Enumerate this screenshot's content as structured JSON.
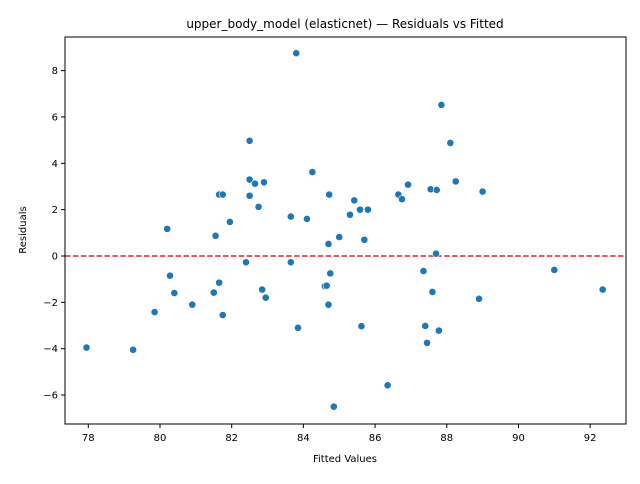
{
  "chart_data": {
    "type": "scatter",
    "title": "upper_body_model (elasticnet) — Residuals vs Fitted",
    "xlabel": "Fitted Values",
    "ylabel": "Residuals",
    "xlim": [
      77.35,
      93.0
    ],
    "ylim": [
      -7.25,
      9.45
    ],
    "xticks": [
      78,
      80,
      82,
      84,
      86,
      88,
      90,
      92
    ],
    "yticks": [
      -6,
      -4,
      -2,
      0,
      2,
      4,
      6,
      8
    ],
    "reference_line": {
      "y": 0,
      "style": "dashed",
      "color": "#d62728"
    },
    "point_color": "#1f77b4",
    "grid": false,
    "legend": "none",
    "series": [
      {
        "points": [
          [
            77.95,
            -3.95
          ],
          [
            79.25,
            -4.05
          ],
          [
            79.85,
            -2.42
          ],
          [
            80.2,
            1.17
          ],
          [
            80.28,
            -0.85
          ],
          [
            80.4,
            -1.6
          ],
          [
            80.9,
            -2.1
          ],
          [
            81.5,
            -1.58
          ],
          [
            81.55,
            0.87
          ],
          [
            81.65,
            -1.15
          ],
          [
            81.65,
            2.65
          ],
          [
            81.75,
            2.65
          ],
          [
            81.75,
            -2.55
          ],
          [
            81.95,
            1.47
          ],
          [
            82.4,
            -0.27
          ],
          [
            82.5,
            4.97
          ],
          [
            82.5,
            3.3
          ],
          [
            82.5,
            2.6
          ],
          [
            82.65,
            3.12
          ],
          [
            82.75,
            2.12
          ],
          [
            82.85,
            -1.45
          ],
          [
            82.9,
            3.18
          ],
          [
            82.95,
            -1.8
          ],
          [
            83.65,
            1.7
          ],
          [
            83.65,
            -0.27
          ],
          [
            83.8,
            8.75
          ],
          [
            83.85,
            -3.1
          ],
          [
            84.1,
            1.6
          ],
          [
            84.25,
            3.62
          ],
          [
            84.6,
            -1.3
          ],
          [
            84.65,
            -1.28
          ],
          [
            84.7,
            0.52
          ],
          [
            84.7,
            -2.1
          ],
          [
            84.72,
            2.65
          ],
          [
            84.75,
            -0.75
          ],
          [
            84.85,
            -6.5
          ],
          [
            85.0,
            0.82
          ],
          [
            85.3,
            1.78
          ],
          [
            85.42,
            2.4
          ],
          [
            85.58,
            2.0
          ],
          [
            85.62,
            -3.03
          ],
          [
            85.7,
            0.7
          ],
          [
            85.8,
            2.0
          ],
          [
            86.35,
            -5.58
          ],
          [
            86.65,
            2.65
          ],
          [
            86.75,
            2.45
          ],
          [
            86.92,
            3.08
          ],
          [
            87.35,
            -0.65
          ],
          [
            87.4,
            -3.02
          ],
          [
            87.45,
            -3.75
          ],
          [
            87.55,
            2.88
          ],
          [
            87.6,
            -1.55
          ],
          [
            87.7,
            0.1
          ],
          [
            87.72,
            2.85
          ],
          [
            87.78,
            -3.22
          ],
          [
            87.85,
            6.52
          ],
          [
            88.1,
            4.88
          ],
          [
            88.25,
            3.22
          ],
          [
            88.9,
            -1.85
          ],
          [
            89.0,
            2.78
          ],
          [
            91.0,
            -0.6
          ],
          [
            92.35,
            -1.45
          ]
        ]
      }
    ]
  }
}
